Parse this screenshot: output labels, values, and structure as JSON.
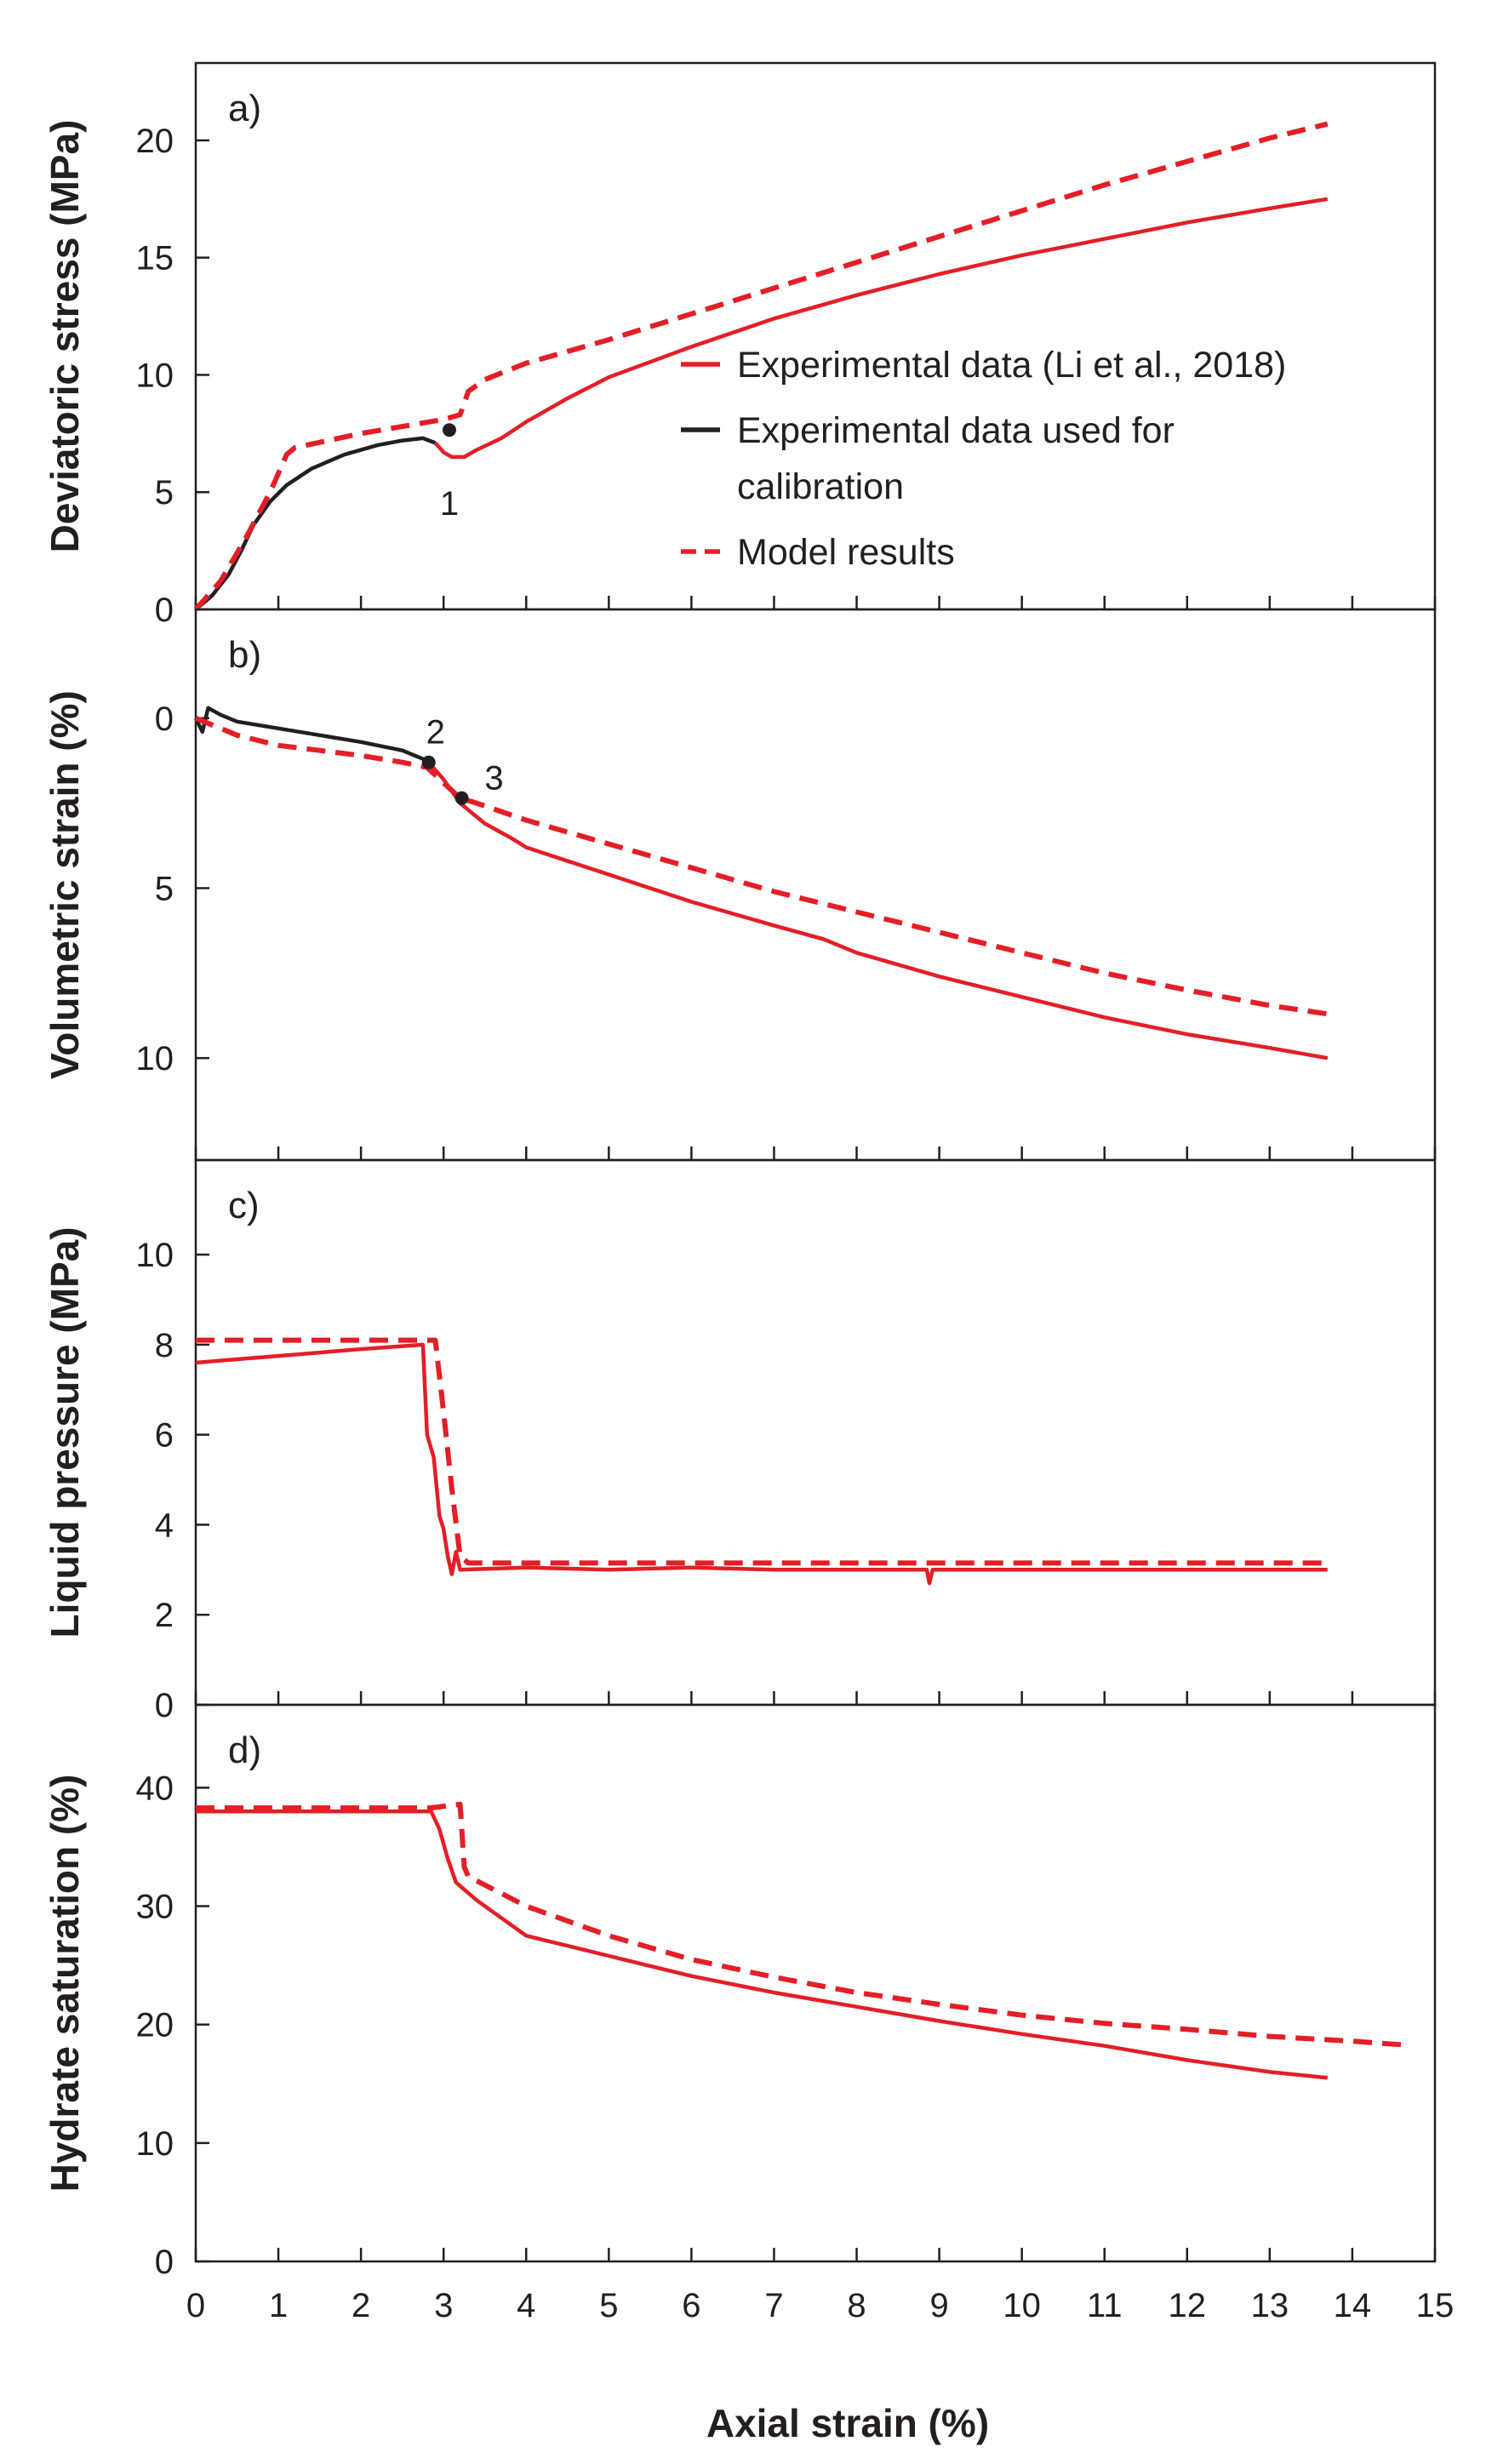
{
  "colors": {
    "experimental": "#e41e26",
    "calibration": "#231f20",
    "model": "#e41e26",
    "axis": "#231f20"
  },
  "x_axis": {
    "label": "Axial strain (%)",
    "range": [
      0,
      15
    ],
    "ticks": [
      0,
      1,
      2,
      3,
      4,
      5,
      6,
      7,
      8,
      9,
      10,
      11,
      12,
      13,
      14,
      15
    ],
    "tick_labels": [
      "0",
      "1",
      "2",
      "3",
      "4",
      "5",
      "6",
      "7",
      "8",
      "9",
      "10",
      "11",
      "12",
      "13",
      "14",
      "15"
    ]
  },
  "legend": [
    {
      "key": "experimental",
      "label": "Experimental data (Li et al., 2018)",
      "style": "solid"
    },
    {
      "key": "calibration",
      "label_lines": [
        "Experimental data used  for",
        "calibration"
      ],
      "style": "solid"
    },
    {
      "key": "model",
      "label": "Model results",
      "style": "dashed"
    }
  ],
  "chart_data": [
    {
      "type": "line",
      "panel_label": "a)",
      "ylabel": "Deviatoric stress (MPa)",
      "ylim": [
        0,
        23.3
      ],
      "yticks": [
        0,
        5,
        10,
        15,
        20
      ],
      "ytick_labels": [
        "0",
        "5",
        "10",
        "15",
        "20"
      ],
      "inverted": false,
      "series": [
        {
          "name": "Experimental data used for calibration",
          "key": "calibration",
          "style": "solid",
          "points": [
            [
              0,
              0
            ],
            [
              0.2,
              0.6
            ],
            [
              0.4,
              1.5
            ],
            [
              0.55,
              2.5
            ],
            [
              0.7,
              3.6
            ],
            [
              0.9,
              4.6
            ],
            [
              1.1,
              5.3
            ],
            [
              1.4,
              6.0
            ],
            [
              1.8,
              6.6
            ],
            [
              2.2,
              7.0
            ],
            [
              2.5,
              7.2
            ],
            [
              2.75,
              7.3
            ],
            [
              2.9,
              7.1
            ]
          ]
        },
        {
          "name": "Experimental data (Li et al., 2018)",
          "key": "experimental",
          "style": "solid",
          "points": [
            [
              2.9,
              7.1
            ],
            [
              3.0,
              6.7
            ],
            [
              3.1,
              6.5
            ],
            [
              3.25,
              6.5
            ],
            [
              3.4,
              6.8
            ],
            [
              3.7,
              7.3
            ],
            [
              4.0,
              8.0
            ],
            [
              4.5,
              9.0
            ],
            [
              5,
              9.9
            ],
            [
              6,
              11.2
            ],
            [
              7,
              12.4
            ],
            [
              8,
              13.4
            ],
            [
              9,
              14.3
            ],
            [
              10,
              15.1
            ],
            [
              11,
              15.8
            ],
            [
              12,
              16.5
            ],
            [
              13,
              17.1
            ],
            [
              13.7,
              17.5
            ]
          ]
        },
        {
          "name": "Model results",
          "key": "model",
          "style": "dashed",
          "points": [
            [
              0,
              0
            ],
            [
              0.3,
              1.2
            ],
            [
              0.6,
              3.0
            ],
            [
              0.9,
              5.0
            ],
            [
              1.1,
              6.6
            ],
            [
              1.2,
              6.9
            ],
            [
              1.6,
              7.2
            ],
            [
              2.0,
              7.5
            ],
            [
              2.5,
              7.8
            ],
            [
              3.0,
              8.1
            ],
            [
              3.2,
              8.3
            ],
            [
              3.25,
              8.8
            ],
            [
              3.3,
              9.3
            ],
            [
              3.5,
              9.8
            ],
            [
              4,
              10.5
            ],
            [
              5,
              11.5
            ],
            [
              6,
              12.6
            ],
            [
              7,
              13.7
            ],
            [
              8,
              14.8
            ],
            [
              9,
              15.9
            ],
            [
              10,
              17.0
            ],
            [
              11,
              18.1
            ],
            [
              12,
              19.1
            ],
            [
              13,
              20.1
            ],
            [
              13.7,
              20.7
            ]
          ]
        }
      ],
      "markers": [
        {
          "label": "1",
          "x": 3.07,
          "y": 7.65
        }
      ]
    },
    {
      "type": "line",
      "panel_label": "b)",
      "ylabel": "Volumetric strain (%)",
      "ylim": [
        -3.2,
        13
      ],
      "yticks": [
        0,
        5,
        10
      ],
      "ytick_labels": [
        "0",
        "5",
        "10"
      ],
      "inverted": true,
      "series": [
        {
          "name": "Experimental data used for calibration",
          "key": "calibration",
          "style": "solid",
          "points": [
            [
              0,
              0
            ],
            [
              0.08,
              0.4
            ],
            [
              0.15,
              -0.3
            ],
            [
              0.3,
              -0.1
            ],
            [
              0.5,
              0.1
            ],
            [
              1.0,
              0.3
            ],
            [
              1.5,
              0.5
            ],
            [
              2.0,
              0.7
            ],
            [
              2.5,
              0.95
            ],
            [
              2.8,
              1.25
            ]
          ]
        },
        {
          "name": "Experimental data (Li et al., 2018)",
          "key": "experimental",
          "style": "solid",
          "points": [
            [
              2.8,
              1.25
            ],
            [
              3.0,
              1.8
            ],
            [
              3.2,
              2.5
            ],
            [
              3.5,
              3.1
            ],
            [
              3.8,
              3.5
            ],
            [
              4,
              3.8
            ],
            [
              5,
              4.6
            ],
            [
              6,
              5.4
            ],
            [
              7,
              6.1
            ],
            [
              7.6,
              6.5
            ],
            [
              8,
              6.9
            ],
            [
              9,
              7.6
            ],
            [
              10,
              8.2
            ],
            [
              11,
              8.8
            ],
            [
              12,
              9.3
            ],
            [
              13,
              9.7
            ],
            [
              13.7,
              10.0
            ]
          ]
        },
        {
          "name": "Model results",
          "key": "model",
          "style": "dashed",
          "points": [
            [
              0,
              0
            ],
            [
              0.5,
              0.5
            ],
            [
              1,
              0.8
            ],
            [
              1.5,
              0.95
            ],
            [
              2,
              1.1
            ],
            [
              2.5,
              1.3
            ],
            [
              2.8,
              1.45
            ],
            [
              3.0,
              1.9
            ],
            [
              3.2,
              2.35
            ],
            [
              3.4,
              2.5
            ],
            [
              4,
              3.0
            ],
            [
              5,
              3.7
            ],
            [
              6,
              4.4
            ],
            [
              7,
              5.1
            ],
            [
              8,
              5.7
            ],
            [
              9,
              6.3
            ],
            [
              10,
              6.9
            ],
            [
              11,
              7.5
            ],
            [
              12,
              8.0
            ],
            [
              13,
              8.45
            ],
            [
              13.7,
              8.7
            ]
          ]
        }
      ],
      "markers": [
        {
          "label": "2",
          "x": 2.82,
          "y": 1.3
        },
        {
          "label": "3",
          "x": 3.22,
          "y": 2.35
        }
      ]
    },
    {
      "type": "line",
      "panel_label": "c)",
      "ylabel": "Liquid pressure (MPa)",
      "ylim": [
        0,
        12.1
      ],
      "yticks": [
        0,
        2,
        4,
        6,
        8,
        10
      ],
      "ytick_labels": [
        "0",
        "2",
        "4",
        "6",
        "8",
        "10"
      ],
      "inverted": false,
      "series": [
        {
          "name": "Experimental data (Li et al., 2018)",
          "key": "experimental",
          "style": "solid",
          "points": [
            [
              0,
              7.6
            ],
            [
              1,
              7.75
            ],
            [
              2,
              7.9
            ],
            [
              2.75,
              8.0
            ],
            [
              2.8,
              6.0
            ],
            [
              2.88,
              5.5
            ],
            [
              2.95,
              4.2
            ],
            [
              3.0,
              3.9
            ],
            [
              3.05,
              3.3
            ],
            [
              3.1,
              2.9
            ],
            [
              3.15,
              3.4
            ],
            [
              3.2,
              3.0
            ],
            [
              4,
              3.05
            ],
            [
              5,
              3.0
            ],
            [
              6,
              3.05
            ],
            [
              7,
              3.0
            ],
            [
              8,
              3.0
            ],
            [
              8.85,
              3.0
            ],
            [
              8.88,
              2.7
            ],
            [
              8.92,
              3.0
            ],
            [
              10,
              3.0
            ],
            [
              11,
              3.0
            ],
            [
              12,
              3.0
            ],
            [
              13,
              3.0
            ],
            [
              13.7,
              3.0
            ]
          ]
        },
        {
          "name": "Model results",
          "key": "model",
          "style": "dashed",
          "points": [
            [
              0,
              8.1
            ],
            [
              1,
              8.1
            ],
            [
              2,
              8.1
            ],
            [
              2.9,
              8.1
            ],
            [
              3.0,
              6.5
            ],
            [
              3.1,
              4.8
            ],
            [
              3.2,
              3.3
            ],
            [
              3.3,
              3.15
            ],
            [
              5,
              3.15
            ],
            [
              7,
              3.15
            ],
            [
              9,
              3.15
            ],
            [
              11,
              3.15
            ],
            [
              13,
              3.15
            ],
            [
              13.7,
              3.15
            ]
          ]
        }
      ]
    },
    {
      "type": "line",
      "panel_label": "d)",
      "ylabel": "Hydrate saturation (%)",
      "ylim": [
        0,
        47
      ],
      "yticks": [
        0,
        10,
        20,
        30,
        40
      ],
      "ytick_labels": [
        "0",
        "10",
        "20",
        "30",
        "40"
      ],
      "inverted": false,
      "series": [
        {
          "name": "Experimental data (Li et al., 2018)",
          "key": "experimental",
          "style": "solid",
          "points": [
            [
              0,
              38
            ],
            [
              1,
              38
            ],
            [
              2,
              38
            ],
            [
              2.85,
              38
            ],
            [
              2.95,
              36.5
            ],
            [
              3.05,
              34
            ],
            [
              3.15,
              32
            ],
            [
              3.4,
              30.5
            ],
            [
              3.8,
              28.5
            ],
            [
              4,
              27.5
            ],
            [
              5,
              25.8
            ],
            [
              6,
              24.1
            ],
            [
              7,
              22.7
            ],
            [
              8,
              21.5
            ],
            [
              9,
              20.3
            ],
            [
              10,
              19.2
            ],
            [
              11,
              18.2
            ],
            [
              12,
              17.0
            ],
            [
              13,
              16.0
            ],
            [
              13.7,
              15.5
            ]
          ]
        },
        {
          "name": "Model results",
          "key": "model",
          "style": "dashed",
          "points": [
            [
              0,
              38.3
            ],
            [
              2,
              38.3
            ],
            [
              2.85,
              38.3
            ],
            [
              3.2,
              38.6
            ],
            [
              3.25,
              33.3
            ],
            [
              3.3,
              32.5
            ],
            [
              4,
              30
            ],
            [
              5,
              27.5
            ],
            [
              6,
              25.5
            ],
            [
              7,
              24.0
            ],
            [
              8,
              22.7
            ],
            [
              9,
              21.7
            ],
            [
              10,
              20.8
            ],
            [
              11,
              20.1
            ],
            [
              12,
              19.6
            ],
            [
              13,
              19.0
            ],
            [
              14,
              18.6
            ],
            [
              14.6,
              18.3
            ]
          ]
        }
      ]
    }
  ]
}
